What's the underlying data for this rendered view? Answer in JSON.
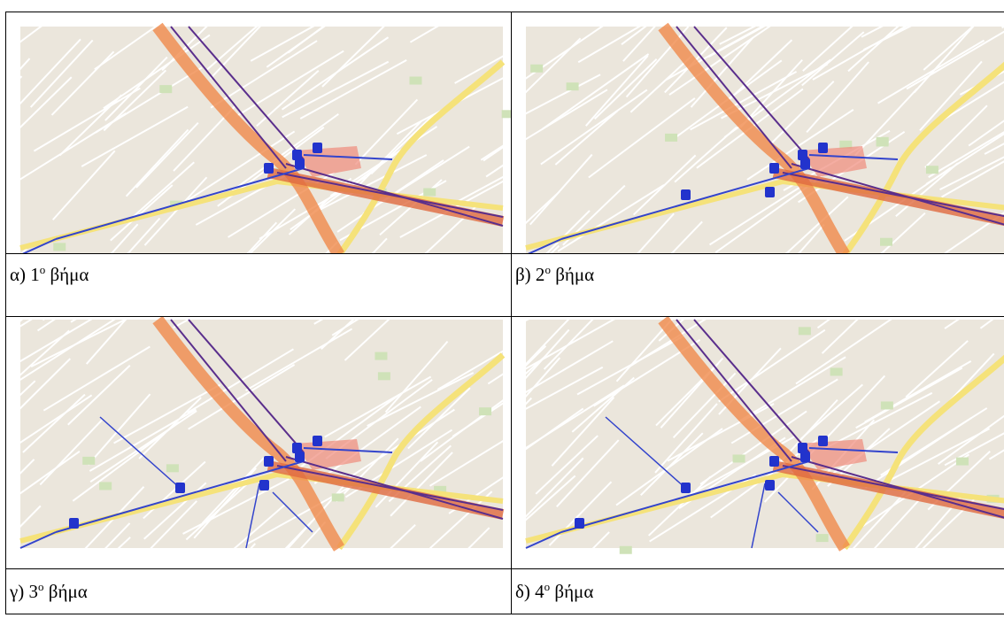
{
  "figures": [
    {
      "prefix": "α) 1",
      "sup": "ο",
      "suffix": "βήμα"
    },
    {
      "prefix": "β) 2",
      "sup": "ο",
      "suffix": "βήμα"
    },
    {
      "prefix": "γ) 3",
      "sup": "ο",
      "suffix": "βήμα"
    },
    {
      "prefix": "δ) 4",
      "sup": "ο",
      "suffix": "βήμα"
    }
  ]
}
